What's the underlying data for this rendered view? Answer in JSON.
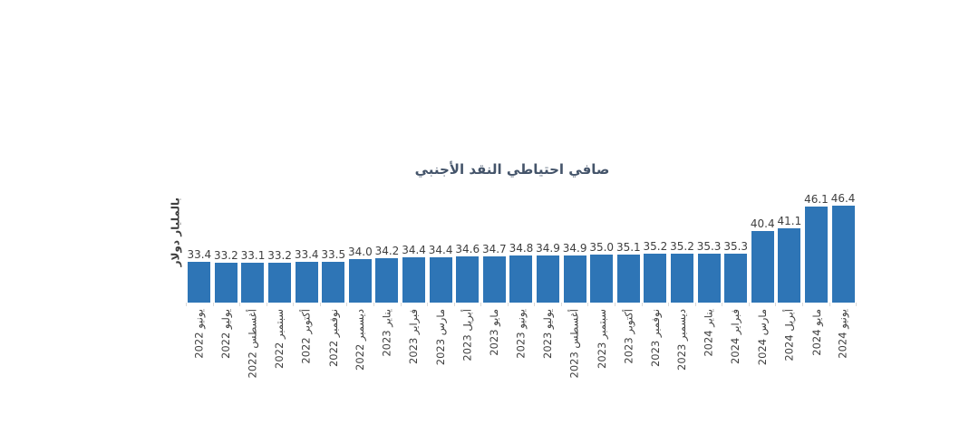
{
  "chart_data": {
    "type": "bar",
    "title": "صافي احتياطي النقد الأجنبي",
    "ylabel": "بالمليار دولار",
    "xlabel": "",
    "categories": [
      "يونيو 2022",
      "يوليو 2022",
      "أغسطس 2022",
      "سبتمبر 2022",
      "أكتوبر 2022",
      "نوفمبر 2022",
      "ديسمبر 2022",
      "يناير 2023",
      "فبراير 2023",
      "مارس 2023",
      "أبريل 2023",
      "مايو 2023",
      "يونيو 2023",
      "يوليو 2023",
      "أغسطس 2023",
      "سبتمبر 2023",
      "أكتوبر 2023",
      "نوفمبر 2023",
      "ديسمبر 2023",
      "يناير 2024",
      "فبراير 2024",
      "مارس 2024",
      "أبريل 2024",
      "مايو 2024",
      "يونيو 2024"
    ],
    "values": [
      33.4,
      33.2,
      33.1,
      33.2,
      33.4,
      33.5,
      34.0,
      34.2,
      34.4,
      34.4,
      34.6,
      34.7,
      34.8,
      34.9,
      34.9,
      35.0,
      35.1,
      35.2,
      35.2,
      35.3,
      35.3,
      40.4,
      41.1,
      46.1,
      46.4
    ],
    "value_label_decimals": 1,
    "ylim": [
      24,
      48
    ],
    "grid": false,
    "legend": "none",
    "x_labels_rotation_deg": -90
  },
  "colors": {
    "bar": "#2e75b6",
    "title": "#44546a",
    "label": "#3f3f3f",
    "tick": "#d9d9d9",
    "background": "#ffffff"
  }
}
